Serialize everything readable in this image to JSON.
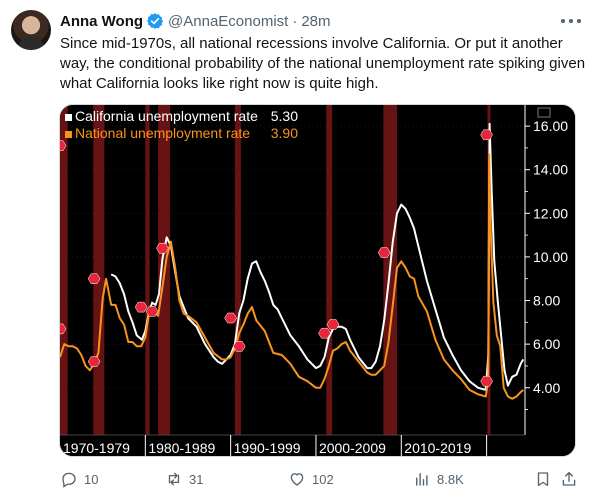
{
  "author": {
    "name": "Anna Wong",
    "handle": "@AnnaEconomist",
    "separator": "·",
    "time": "28m"
  },
  "tweet_text": "Since mid-1970s, all national recessions involve California. Or put it another way, the conditional probability of the national unemployment rate spiking given what California looks like right now is quite high.",
  "actions": {
    "replies": "10",
    "retweets": "31",
    "likes": "102",
    "views": "8.8K"
  },
  "colors": {
    "california": "#ffffff",
    "national": "#f7941d",
    "recession": "#7a1616",
    "marker": "#e8253a",
    "verified": "#1d9bf0"
  },
  "icons": [
    "verified-badge-icon",
    "more-icon",
    "reply-icon",
    "retweet-icon",
    "like-icon",
    "views-icon",
    "bookmark-icon",
    "share-icon"
  ],
  "chart_data": {
    "type": "line",
    "legend": [
      {
        "label": "California unemployment rate",
        "value": "5.30"
      },
      {
        "label": "National unemployment rate",
        "value": "3.90"
      }
    ],
    "legend_placement": "top-left",
    "ylim": [
      2.2,
      16.6
    ],
    "xlim": [
      1970,
      2024.5
    ],
    "y_ticks": [
      "4.00",
      "6.00",
      "8.00",
      "10.00",
      "12.00",
      "14.00",
      "16.00"
    ],
    "y_tick_values": [
      4,
      6,
      8,
      10,
      12,
      14,
      16
    ],
    "x_period_labels": [
      "1970-1979",
      "1980-1989",
      "1990-1999",
      "2000-2009",
      "2010-2019"
    ],
    "x_period_starts": [
      1970,
      1980,
      1990,
      2000,
      2010
    ],
    "recessions": [
      [
        1970.0,
        1970.9
      ],
      [
        1973.9,
        1975.2
      ],
      [
        1980.0,
        1980.5
      ],
      [
        1981.5,
        1982.9
      ],
      [
        1990.5,
        1991.2
      ],
      [
        2001.2,
        2001.9
      ],
      [
        2007.9,
        2009.5
      ],
      [
        2020.1,
        2020.4
      ]
    ],
    "markers": [
      {
        "x": 1970.0,
        "y": 15.1
      },
      {
        "x": 1970.0,
        "y": 6.7
      },
      {
        "x": 1974.0,
        "y": 9.0
      },
      {
        "x": 1974.0,
        "y": 5.2
      },
      {
        "x": 1979.5,
        "y": 7.7
      },
      {
        "x": 1980.8,
        "y": 7.5
      },
      {
        "x": 1982.0,
        "y": 10.4
      },
      {
        "x": 1990.0,
        "y": 7.2
      },
      {
        "x": 1991.0,
        "y": 5.9
      },
      {
        "x": 2001.0,
        "y": 6.5
      },
      {
        "x": 2002.0,
        "y": 6.9
      },
      {
        "x": 2008.0,
        "y": 10.2
      },
      {
        "x": 2020.0,
        "y": 15.6
      },
      {
        "x": 2020.0,
        "y": 4.3
      }
    ],
    "series": [
      {
        "name": "California unemployment rate",
        "x": [
          1976.0,
          1976.5,
          1977.0,
          1977.5,
          1978.0,
          1978.5,
          1979.0,
          1979.6,
          1980.0,
          1980.4,
          1980.8,
          1981.2,
          1981.6,
          1982.0,
          1982.5,
          1983.0,
          1983.5,
          1984.0,
          1984.5,
          1985.0,
          1986.0,
          1987.0,
          1988.0,
          1988.5,
          1989.0,
          1989.5,
          1990.0,
          1990.5,
          1991.0,
          1991.5,
          1992.0,
          1992.5,
          1993.0,
          1993.5,
          1994.0,
          1994.5,
          1995.0,
          1995.5,
          1996.0,
          1997.0,
          1998.0,
          1999.0,
          2000.0,
          2000.5,
          2001.0,
          2001.5,
          2002.0,
          2002.5,
          2003.0,
          2003.5,
          2004.0,
          2005.0,
          2006.0,
          2006.5,
          2007.0,
          2007.5,
          2008.0,
          2008.5,
          2009.0,
          2009.5,
          2010.0,
          2010.5,
          2011.0,
          2011.5,
          2012.0,
          2013.0,
          2014.0,
          2015.0,
          2016.0,
          2017.0,
          2018.0,
          2019.0,
          2019.9,
          2020.2,
          2020.35,
          2020.6,
          2020.9,
          2021.3,
          2021.7,
          2022.1,
          2022.5,
          2023.0,
          2023.5,
          2024.0,
          2024.3
        ],
        "y": [
          9.2,
          9.1,
          8.8,
          8.3,
          7.5,
          7.0,
          6.4,
          6.2,
          6.6,
          7.4,
          7.9,
          7.8,
          8.3,
          9.9,
          10.9,
          10.5,
          9.3,
          8.2,
          7.7,
          7.2,
          6.8,
          6.0,
          5.4,
          5.2,
          5.1,
          5.3,
          5.5,
          6.0,
          7.4,
          8.0,
          9.0,
          9.7,
          9.8,
          9.3,
          8.9,
          8.4,
          7.8,
          7.6,
          7.2,
          6.4,
          5.9,
          5.3,
          4.9,
          5.0,
          5.4,
          6.3,
          6.7,
          6.8,
          6.8,
          6.7,
          6.2,
          5.4,
          4.9,
          4.9,
          5.2,
          5.9,
          7.1,
          8.8,
          10.7,
          12.0,
          12.4,
          12.2,
          11.8,
          11.3,
          10.5,
          8.9,
          7.6,
          6.3,
          5.5,
          4.8,
          4.3,
          4.0,
          3.9,
          5.5,
          16.1,
          13.0,
          9.8,
          8.0,
          6.4,
          4.8,
          4.1,
          4.5,
          4.6,
          5.1,
          5.3
        ]
      },
      {
        "name": "National unemployment rate",
        "x": [
          1970.0,
          1970.5,
          1971.0,
          1971.5,
          1972.0,
          1972.5,
          1973.0,
          1973.5,
          1974.0,
          1974.5,
          1975.0,
          1975.4,
          1976.0,
          1976.5,
          1977.0,
          1977.5,
          1978.0,
          1978.5,
          1979.0,
          1979.5,
          1980.0,
          1980.5,
          1981.0,
          1981.5,
          1982.0,
          1982.5,
          1983.0,
          1983.5,
          1984.0,
          1984.5,
          1985.0,
          1986.0,
          1987.0,
          1988.0,
          1989.0,
          1989.5,
          1990.0,
          1990.5,
          1991.0,
          1991.5,
          1992.0,
          1992.5,
          1993.0,
          1994.0,
          1995.0,
          1996.0,
          1997.0,
          1998.0,
          1999.0,
          2000.0,
          2000.5,
          2001.0,
          2001.5,
          2002.0,
          2002.5,
          2003.0,
          2003.5,
          2004.0,
          2005.0,
          2006.0,
          2006.5,
          2007.0,
          2007.5,
          2008.0,
          2008.5,
          2009.0,
          2009.5,
          2010.0,
          2010.5,
          2011.0,
          2011.5,
          2012.0,
          2013.0,
          2014.0,
          2015.0,
          2016.0,
          2017.0,
          2018.0,
          2019.0,
          2019.9,
          2020.2,
          2020.3,
          2020.5,
          2020.8,
          2021.2,
          2021.6,
          2022.0,
          2022.5,
          2023.0,
          2023.5,
          2024.0,
          2024.3
        ],
        "y": [
          5.4,
          6.0,
          5.9,
          5.9,
          5.8,
          5.5,
          5.0,
          4.8,
          5.1,
          5.6,
          8.1,
          9.0,
          7.8,
          7.8,
          7.2,
          6.9,
          6.1,
          6.1,
          5.9,
          5.9,
          6.3,
          7.6,
          7.5,
          7.3,
          8.6,
          10.0,
          10.7,
          9.5,
          8.0,
          7.4,
          7.3,
          7.0,
          6.3,
          5.6,
          5.3,
          5.3,
          5.4,
          5.8,
          6.5,
          6.9,
          7.4,
          7.7,
          7.1,
          6.6,
          5.6,
          5.5,
          5.1,
          4.5,
          4.3,
          4.0,
          4.0,
          4.4,
          5.0,
          5.7,
          5.8,
          6.0,
          6.1,
          5.7,
          5.2,
          4.7,
          4.6,
          4.6,
          4.8,
          5.0,
          6.1,
          7.8,
          9.5,
          9.8,
          9.5,
          9.1,
          9.0,
          8.2,
          7.5,
          6.2,
          5.3,
          4.8,
          4.4,
          3.9,
          3.7,
          3.6,
          4.4,
          14.7,
          11.0,
          7.9,
          6.4,
          5.9,
          4.0,
          3.6,
          3.5,
          3.6,
          3.8,
          3.9
        ]
      }
    ]
  }
}
